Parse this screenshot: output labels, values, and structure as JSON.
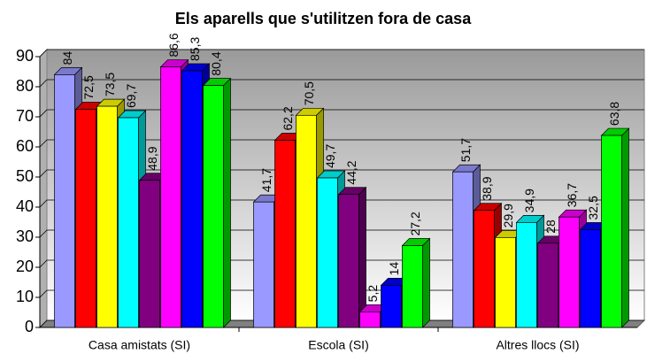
{
  "chart_data": {
    "type": "bar3d",
    "title": "Els aparells que s'utilitzen fora de casa",
    "categories": [
      "Casa amistats (SI)",
      "Escola (SI)",
      "Altres llocs (SI)"
    ],
    "series": [
      {
        "color": "#9999ff",
        "values": [
          84,
          41.7,
          51.7
        ],
        "value_labels": [
          "84",
          "41,7",
          "51,7"
        ]
      },
      {
        "color": "#ff0000",
        "values": [
          72.5,
          62.2,
          38.9
        ],
        "value_labels": [
          "72,5",
          "62,2",
          "38,9"
        ]
      },
      {
        "color": "#ffff00",
        "values": [
          73.5,
          70.5,
          29.9
        ],
        "value_labels": [
          "73,5",
          "70,5",
          "29,9"
        ]
      },
      {
        "color": "#00ffff",
        "values": [
          69.7,
          49.7,
          34.9
        ],
        "value_labels": [
          "69,7",
          "49,7",
          "34,9"
        ]
      },
      {
        "color": "#800080",
        "values": [
          48.9,
          44.2,
          28
        ],
        "value_labels": [
          "48,9",
          "44,2",
          "28"
        ]
      },
      {
        "color": "#ff00ff",
        "values": [
          86.6,
          5.2,
          36.7
        ],
        "value_labels": [
          "86,6",
          "5,2",
          "36,7"
        ]
      },
      {
        "color": "#0000ff",
        "values": [
          85.3,
          14,
          32.5
        ],
        "value_labels": [
          "85,3",
          "14",
          "32,5"
        ]
      },
      {
        "color": "#00ff00",
        "values": [
          80.4,
          27.2,
          63.8
        ],
        "value_labels": [
          "80,4",
          "27,2",
          "63,8"
        ]
      }
    ],
    "ylim": [
      0,
      90
    ],
    "yticks": [
      0,
      10,
      20,
      30,
      40,
      50,
      60,
      70,
      80,
      90
    ],
    "grid": true
  }
}
